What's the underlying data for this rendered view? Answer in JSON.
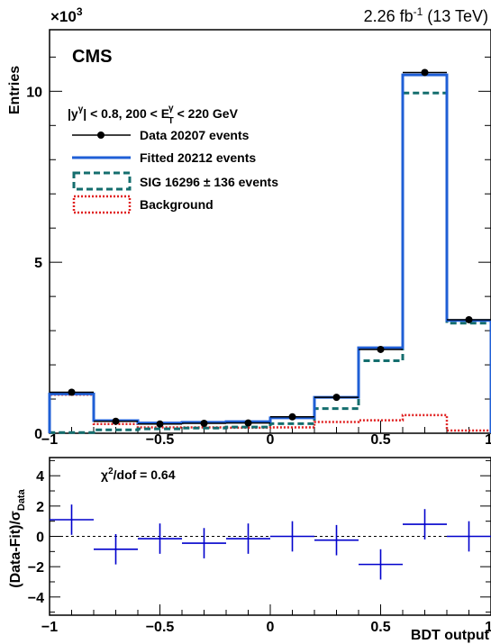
{
  "chart_data": [
    {
      "type": "histogram",
      "panel": "main",
      "bin_edges": [
        -1.0,
        -0.8,
        -0.6,
        -0.4,
        -0.2,
        0.0,
        0.2,
        0.4,
        0.6,
        0.8,
        1.0
      ],
      "xlim": [
        -1,
        1
      ],
      "ylim": [
        0,
        11.8
      ],
      "y_multiplier": "×10",
      "y_exponent": "3",
      "ylabel": "Entries",
      "xticks": [
        "−1",
        "−0.5",
        "0",
        "0.5",
        "1"
      ],
      "yticks": [
        "0",
        "5",
        "10"
      ],
      "lumi_main": "2.26 fb",
      "lumi_exp": "-1",
      "lumi_tail": " (13 TeV)",
      "experiment": "CMS",
      "selection": {
        "y_part": "|y",
        "y_sup": "γ",
        "mid": "| < 0.8,  200 < E",
        "e_sup": "γ",
        "e_sub": "T",
        "tail": " < 220 GeV"
      },
      "series": [
        {
          "name": "Data 20207 events",
          "kind": "points",
          "color": "#000000",
          "values": [
            1.2,
            0.35,
            0.27,
            0.29,
            0.3,
            0.48,
            1.05,
            2.45,
            10.55,
            3.32
          ]
        },
        {
          "name": "Fitted 20212 events",
          "kind": "step",
          "color": "#1f5fd6",
          "values": [
            1.15,
            0.37,
            0.3,
            0.32,
            0.34,
            0.45,
            1.05,
            2.5,
            10.48,
            3.3
          ]
        },
        {
          "name": "SIG 16296 ± 136 events",
          "kind": "step-dashed",
          "color": "#146e6e",
          "values": [
            0.02,
            0.1,
            0.13,
            0.15,
            0.18,
            0.28,
            0.72,
            2.12,
            9.95,
            3.22
          ]
        },
        {
          "name": "Background",
          "kind": "step-dotted",
          "color": "#e02020",
          "values": [
            1.13,
            0.27,
            0.17,
            0.17,
            0.16,
            0.17,
            0.33,
            0.38,
            0.53,
            0.08
          ]
        }
      ]
    },
    {
      "type": "errorbar",
      "panel": "ratio",
      "bin_edges": [
        -1.0,
        -0.8,
        -0.6,
        -0.4,
        -0.2,
        0.0,
        0.2,
        0.4,
        0.6,
        0.8,
        1.0
      ],
      "xlim": [
        -1,
        1
      ],
      "ylim": [
        -5.2,
        5.2
      ],
      "ylabel": "(Data-Fit)/σ",
      "ylabel_sub": "Data",
      "xlabel": "BDT output",
      "xticks": [
        "−1",
        "−0.5",
        "0",
        "0.5",
        "1"
      ],
      "yticks": [
        "−4",
        "−2",
        "0",
        "2",
        "4"
      ],
      "annotation": "χ",
      "annotation_sup": "2",
      "annotation_tail": "/dof = 0.64",
      "series": [
        {
          "name": "",
          "color": "#0000cc",
          "values": [
            1.1,
            -0.85,
            -0.15,
            -0.45,
            -0.15,
            0.0,
            -0.25,
            -1.85,
            0.8,
            0.0
          ],
          "errors": [
            1,
            1,
            1,
            1,
            1,
            1,
            1,
            1,
            1,
            1
          ]
        }
      ]
    }
  ]
}
